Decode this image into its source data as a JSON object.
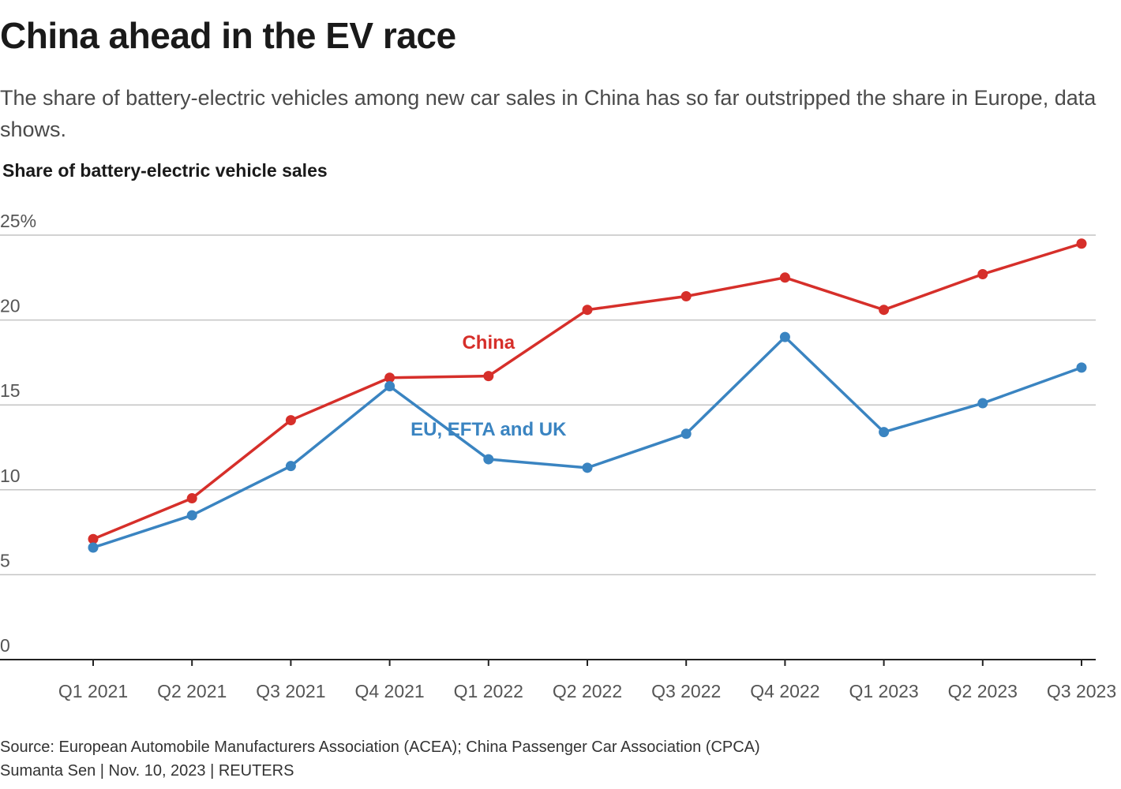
{
  "header": {
    "title": "China ahead in the EV race",
    "subtitle": "The share of battery-electric vehicles among new car sales in China has so far outstripped the share in Europe, data shows."
  },
  "footer": {
    "source": "Source: European Automobile Manufacturers Association (ACEA); China Passenger Car Association (CPCA)",
    "byline": "Sumanta Sen | Nov. 10, 2023 | REUTERS"
  },
  "chart_data": {
    "type": "line",
    "title": "China ahead in the EV race",
    "ylabel": "Share of battery-electric vehicle sales",
    "xlabel": "",
    "ylim": [
      0,
      25
    ],
    "yticks": [
      {
        "value": 0,
        "label": "0"
      },
      {
        "value": 5,
        "label": "5"
      },
      {
        "value": 10,
        "label": "10"
      },
      {
        "value": 15,
        "label": "15"
      },
      {
        "value": 20,
        "label": "20"
      },
      {
        "value": 25,
        "label": "25%"
      }
    ],
    "grid": true,
    "categories": [
      "Q1 2021",
      "Q2 2021",
      "Q3 2021",
      "Q4 2021",
      "Q1 2022",
      "Q2 2022",
      "Q3 2022",
      "Q4 2022",
      "Q1 2023",
      "Q2 2023",
      "Q3 2023"
    ],
    "series": [
      {
        "name": "China",
        "color": "#d62f2a",
        "values": [
          7.1,
          9.5,
          14.1,
          16.6,
          16.7,
          20.6,
          21.4,
          22.5,
          20.6,
          22.7,
          24.5
        ],
        "label_anchor": {
          "category": "Q1 2022",
          "value": 18.3
        }
      },
      {
        "name": "EU, EFTA and UK",
        "color": "#3a84c1",
        "values": [
          6.6,
          8.5,
          11.4,
          16.1,
          11.8,
          11.3,
          13.3,
          19.0,
          13.4,
          15.1,
          17.2
        ],
        "label_anchor": {
          "category": "Q1 2022",
          "value": 13.2
        }
      }
    ]
  }
}
